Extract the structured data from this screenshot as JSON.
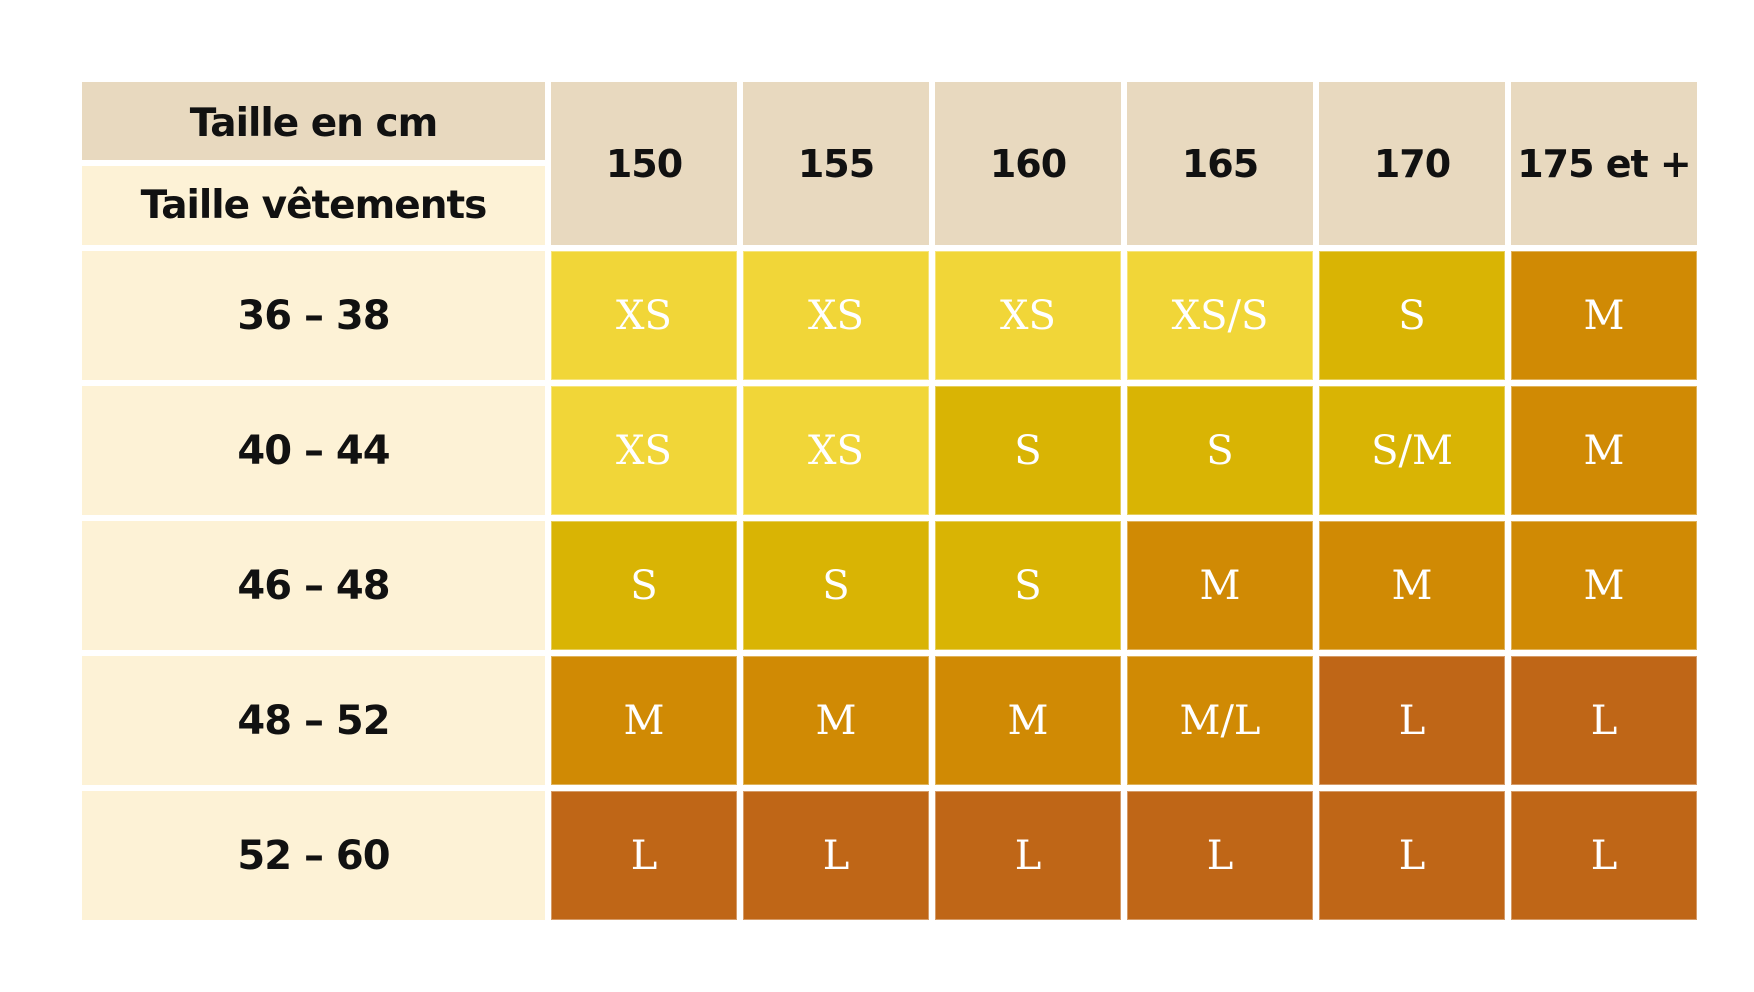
{
  "table": {
    "corner_top": "Taille en cm",
    "corner_bottom": "Taille vêtements",
    "columns": [
      "150",
      "155",
      "160",
      "165",
      "170",
      "175 et +"
    ],
    "rows": [
      {
        "label": "36 – 38",
        "cells": [
          "XS",
          "XS",
          "XS",
          "XS/S",
          "S",
          "M"
        ]
      },
      {
        "label": "40 – 44",
        "cells": [
          "XS",
          "XS",
          "S",
          "S",
          "S/M",
          "M"
        ]
      },
      {
        "label": "46 – 48",
        "cells": [
          "S",
          "S",
          "S",
          "M",
          "M",
          "M"
        ]
      },
      {
        "label": "48 – 52",
        "cells": [
          "M",
          "M",
          "M",
          "M/L",
          "L",
          "L"
        ]
      },
      {
        "label": "52 – 60",
        "cells": [
          "L",
          "L",
          "L",
          "L",
          "L",
          "L"
        ]
      }
    ]
  },
  "colors": {
    "header_bg": "#e8d9bf",
    "label_bg": "#fdf2d6",
    "XS": "#f1d638",
    "XS/S": "#f1d638",
    "S": "#d9b404",
    "S/M": "#d9b404",
    "M": "#d08a04",
    "M/L": "#d08a04",
    "L": "#bf6617"
  }
}
